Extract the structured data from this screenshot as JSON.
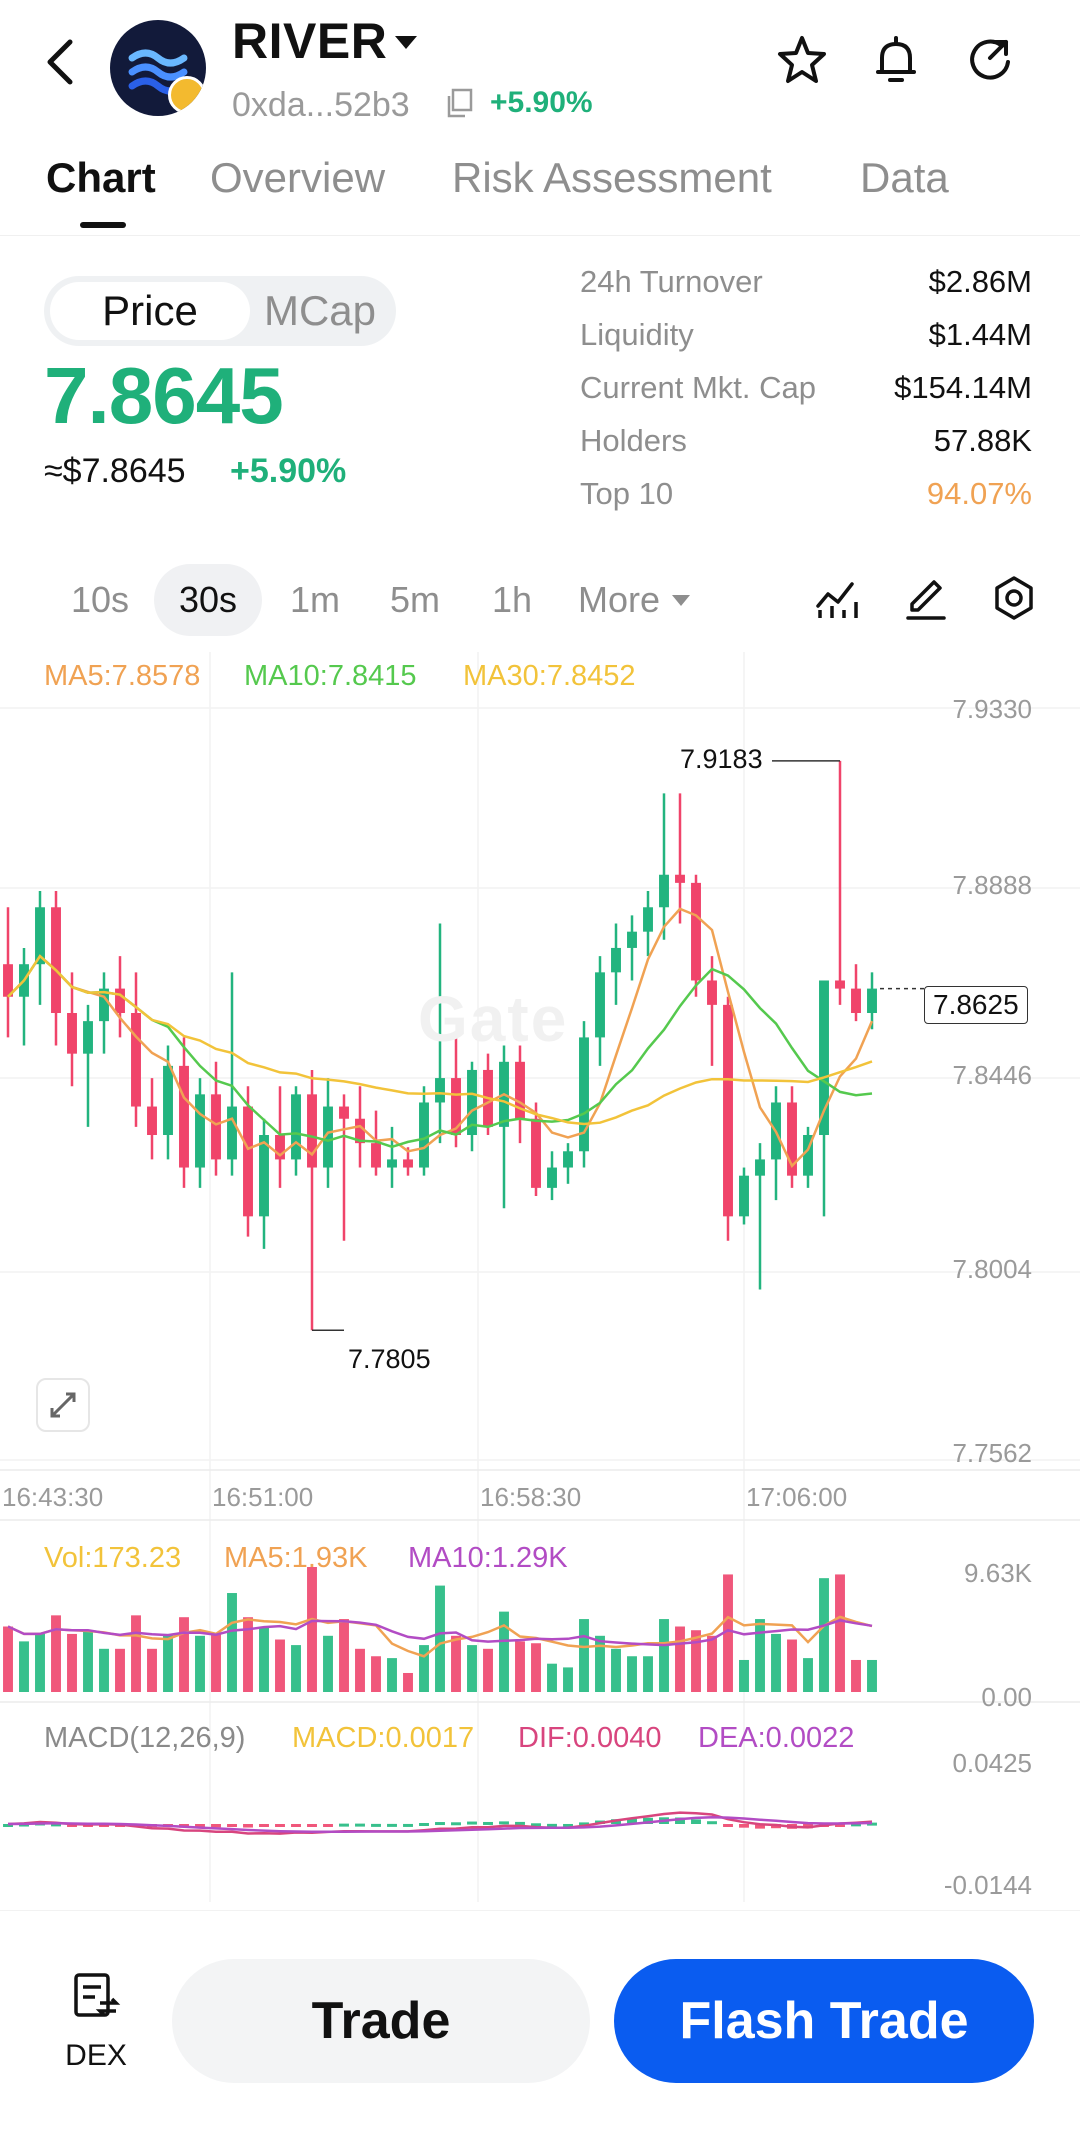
{
  "header": {
    "token_name": "RIVER",
    "address": "0xda...52b3",
    "change": "+5.90%"
  },
  "tabs": [
    "Chart",
    "Overview",
    "Risk Assessment",
    "Data"
  ],
  "price_toggle": {
    "price": "Price",
    "mcap": "MCap"
  },
  "price": {
    "value": "7.8645",
    "usd": "≈$7.8645",
    "change": "+5.90%"
  },
  "stats": [
    {
      "label": "24h   Turnover",
      "value": "$2.86M"
    },
    {
      "label": "Liquidity",
      "value": "$1.44M"
    },
    {
      "label": "Current Mkt. Cap",
      "value": "$154.14M"
    },
    {
      "label": "Holders",
      "value": "57.88K"
    },
    {
      "label": "Top 10",
      "value": "94.07%"
    }
  ],
  "intervals": [
    "10s",
    "30s",
    "1m",
    "5m",
    "1h",
    "More"
  ],
  "chart": {
    "ma_legend": {
      "ma5": "MA5:7.8578",
      "ma10": "MA10:7.8415",
      "ma30": "MA30:7.8452"
    },
    "y_labels": [
      "7.9330",
      "7.8888",
      "7.8446",
      "7.8004",
      "7.7562"
    ],
    "time_labels": [
      "16:43:30",
      "16:51:00",
      "16:58:30",
      "17:06:00"
    ],
    "high_label": "7.9183",
    "low_label": "7.7805",
    "current_price": "7.8625",
    "watermark": "Gate",
    "vol_legend": {
      "vol": "Vol:173.23",
      "ma5": "MA5:1.93K",
      "ma10": "MA10:1.29K"
    },
    "vol_axis": [
      "9.63K",
      "0.00"
    ],
    "macd_legend": {
      "title": "MACD(12,26,9)",
      "macd": "MACD:0.0017",
      "dif": "DIF:0.0040",
      "dea": "DEA:0.0022"
    },
    "macd_axis": [
      "0.0425",
      "-0.0144"
    ]
  },
  "chart_data": {
    "type": "candlestick",
    "ylim": [
      7.7562,
      7.933
    ],
    "candles": [
      [
        7.87,
        7.884,
        7.852,
        7.862
      ],
      [
        7.862,
        7.874,
        7.85,
        7.87
      ],
      [
        7.87,
        7.888,
        7.86,
        7.884
      ],
      [
        7.884,
        7.888,
        7.85,
        7.858
      ],
      [
        7.858,
        7.868,
        7.84,
        7.848
      ],
      [
        7.848,
        7.86,
        7.83,
        7.856
      ],
      [
        7.856,
        7.868,
        7.848,
        7.864
      ],
      [
        7.864,
        7.872,
        7.852,
        7.858
      ],
      [
        7.858,
        7.868,
        7.83,
        7.835
      ],
      [
        7.835,
        7.842,
        7.822,
        7.828
      ],
      [
        7.828,
        7.85,
        7.822,
        7.845
      ],
      [
        7.845,
        7.852,
        7.815,
        7.82
      ],
      [
        7.82,
        7.842,
        7.815,
        7.838
      ],
      [
        7.838,
        7.846,
        7.818,
        7.822
      ],
      [
        7.822,
        7.868,
        7.818,
        7.835
      ],
      [
        7.835,
        7.84,
        7.803,
        7.808
      ],
      [
        7.808,
        7.832,
        7.8,
        7.828
      ],
      [
        7.828,
        7.84,
        7.815,
        7.822
      ],
      [
        7.822,
        7.84,
        7.818,
        7.838
      ],
      [
        7.838,
        7.844,
        7.78,
        7.82
      ],
      [
        7.82,
        7.842,
        7.815,
        7.835
      ],
      [
        7.835,
        7.838,
        7.802,
        7.832
      ],
      [
        7.832,
        7.84,
        7.82,
        7.826
      ],
      [
        7.826,
        7.834,
        7.818,
        7.82
      ],
      [
        7.82,
        7.83,
        7.815,
        7.822
      ],
      [
        7.822,
        7.825,
        7.818,
        7.82
      ],
      [
        7.82,
        7.84,
        7.818,
        7.836
      ],
      [
        7.836,
        7.88,
        7.826,
        7.842
      ],
      [
        7.842,
        7.852,
        7.825,
        7.828
      ],
      [
        7.828,
        7.846,
        7.824,
        7.844
      ],
      [
        7.844,
        7.848,
        7.828,
        7.83
      ],
      [
        7.83,
        7.85,
        7.81,
        7.846
      ],
      [
        7.846,
        7.85,
        7.826,
        7.832
      ],
      [
        7.832,
        7.836,
        7.813,
        7.815
      ],
      [
        7.815,
        7.824,
        7.812,
        7.82
      ],
      [
        7.82,
        7.826,
        7.816,
        7.824
      ],
      [
        7.824,
        7.856,
        7.82,
        7.852
      ],
      [
        7.852,
        7.872,
        7.845,
        7.868
      ],
      [
        7.868,
        7.88,
        7.86,
        7.874
      ],
      [
        7.874,
        7.882,
        7.866,
        7.878
      ],
      [
        7.878,
        7.888,
        7.872,
        7.884
      ],
      [
        7.884,
        7.912,
        7.876,
        7.892
      ],
      [
        7.892,
        7.912,
        7.88,
        7.89
      ],
      [
        7.89,
        7.892,
        7.862,
        7.866
      ],
      [
        7.866,
        7.872,
        7.845,
        7.86
      ],
      [
        7.86,
        7.862,
        7.802,
        7.808
      ],
      [
        7.808,
        7.82,
        7.806,
        7.818
      ],
      [
        7.818,
        7.826,
        7.79,
        7.822
      ],
      [
        7.822,
        7.84,
        7.812,
        7.836
      ],
      [
        7.836,
        7.84,
        7.815,
        7.818
      ],
      [
        7.818,
        7.83,
        7.815,
        7.828
      ],
      [
        7.828,
        7.866,
        7.808,
        7.866
      ],
      [
        7.866,
        7.92,
        7.86,
        7.864
      ],
      [
        7.864,
        7.87,
        7.856,
        7.858
      ],
      [
        7.858,
        7.868,
        7.854,
        7.864
      ]
    ]
  }
}
